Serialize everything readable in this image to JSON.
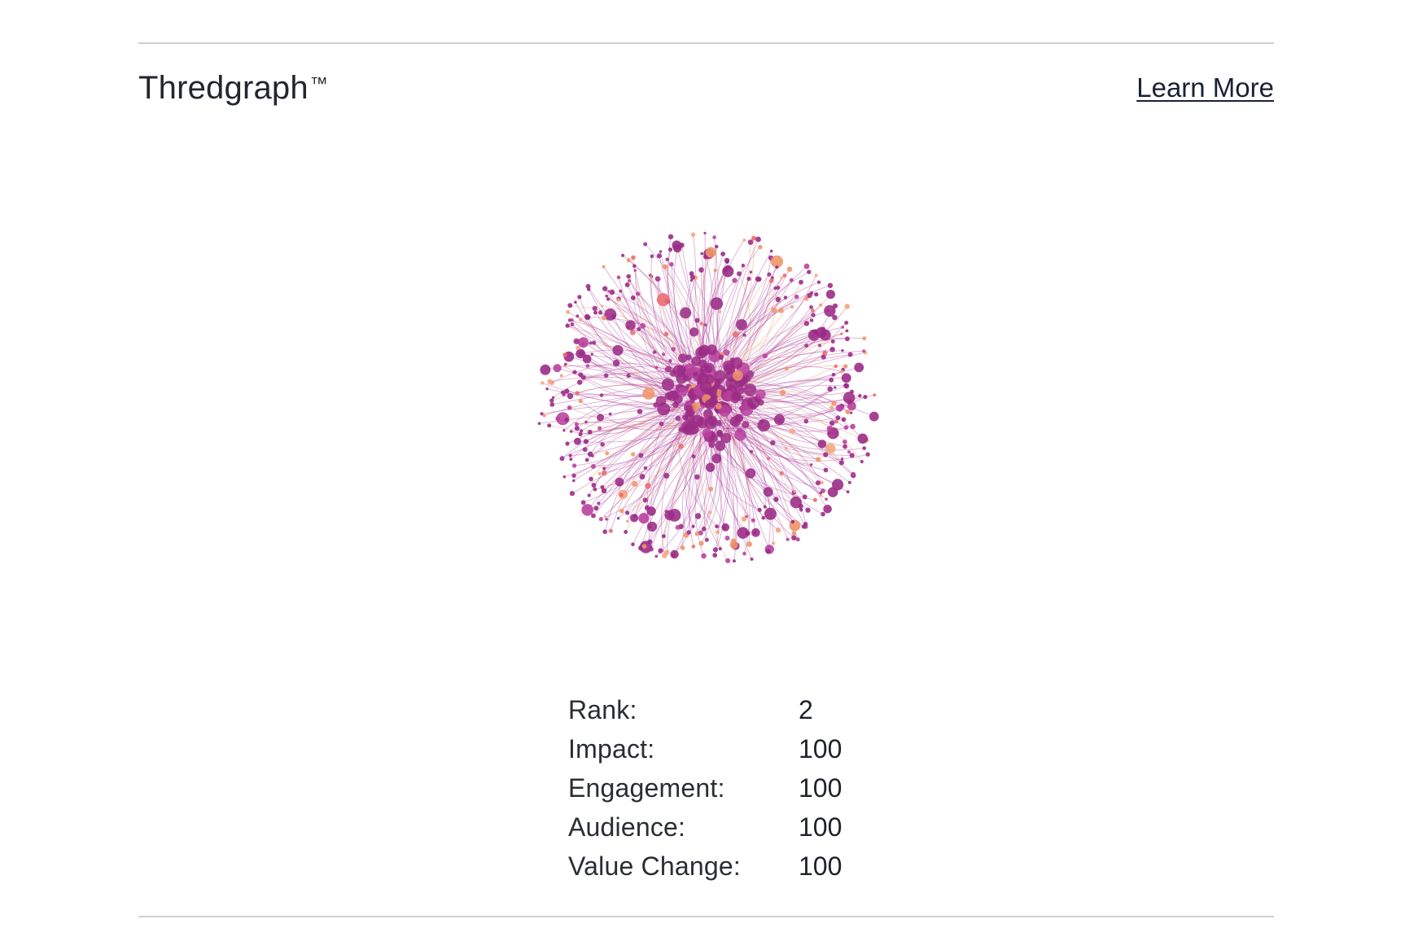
{
  "header": {
    "title": "Thredgraph",
    "trademark": "™",
    "learn_more_label": "Learn More"
  },
  "graph": {
    "colors": {
      "primary": "#9b2c86",
      "secondary": "#b8419d",
      "accent_orange": "#f0956a",
      "accent_peach": "#f4a77f",
      "accent_coral": "#ec6a6f",
      "edge": "#b34ea5"
    }
  },
  "stats": [
    {
      "label": "Rank:",
      "value": "2"
    },
    {
      "label": "Impact:",
      "value": "100"
    },
    {
      "label": "Engagement:",
      "value": "100"
    },
    {
      "label": "Audience:",
      "value": "100"
    },
    {
      "label": "Value Change:",
      "value": "100"
    }
  ]
}
